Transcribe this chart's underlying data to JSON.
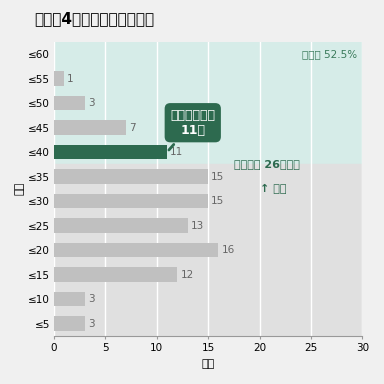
{
  "title": "タイプ4「社会実装の推進」",
  "categories": [
    "≤60",
    "≤55",
    "≤50",
    "≤45",
    "≤40",
    "≤35",
    "≤30",
    "≤25",
    "≤20",
    "≤15",
    "≤10",
    "≤5"
  ],
  "values": [
    0,
    1,
    3,
    7,
    11,
    15,
    15,
    13,
    16,
    12,
    3,
    3
  ],
  "bar_colors": [
    "#c0c0c0",
    "#c0c0c0",
    "#c0c0c0",
    "#c0c0c0",
    "#2d6a4f",
    "#c0c0c0",
    "#c0c0c0",
    "#c0c0c0",
    "#c0c0c0",
    "#c0c0c0",
    "#c0c0c0",
    "#c0c0c0"
  ],
  "xlabel": "校数",
  "ylabel": "点率",
  "xlim": [
    0,
    30
  ],
  "xticks": [
    0,
    5,
    10,
    15,
    20,
    25,
    30
  ],
  "bg_mint_color": "#d6ece8",
  "bg_gray_color": "#e0e0e0",
  "fig_bg_color": "#f0f0f0",
  "selection_rate_text": "選定率 52.5%",
  "selection_rate_color": "#3a7a5a",
  "criteria_text1": "選定基準 26点以上",
  "criteria_text2": "↑ 選定",
  "criteria_color": "#2d6a4f",
  "annotation_text": "芦浦工大含む\n11校",
  "annotation_bg": "#2d6a4f",
  "annotation_text_color": "#ffffff",
  "value_color": "#666666",
  "title_fontsize": 11,
  "label_fontsize": 8,
  "tick_fontsize": 7.5,
  "value_fontsize": 7.5,
  "annot_fontsize": 9,
  "criteria_fontsize": 8
}
